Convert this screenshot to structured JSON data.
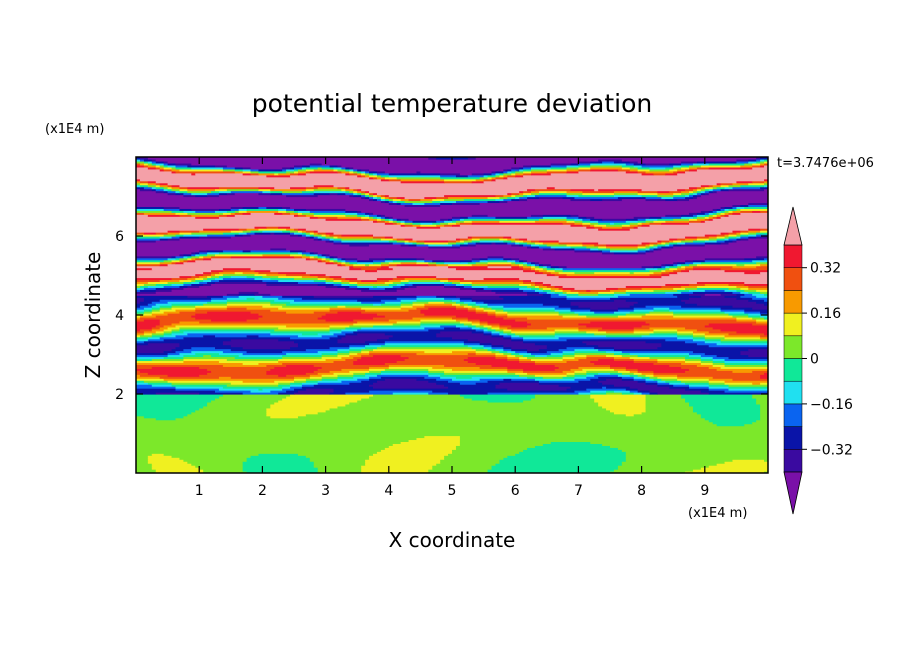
{
  "chart_data": {
    "type": "heatmap",
    "title": "potential temperature deviation",
    "xlabel": "X coordinate",
    "ylabel": "Z coordinate",
    "x_units": "(x1E4 m)",
    "y_units": "(x1E4 m)",
    "time_label": "t=3.7476e+06",
    "xlim": [
      0,
      10
    ],
    "ylim": [
      0,
      8
    ],
    "x_ticks": [
      1,
      2,
      3,
      4,
      5,
      6,
      7,
      8,
      9
    ],
    "y_ticks": [
      2,
      4,
      6
    ],
    "colorbar": {
      "levels": [
        -0.4,
        -0.32,
        -0.24,
        -0.16,
        -0.08,
        0,
        0.08,
        0.16,
        0.24,
        0.32,
        0.4
      ],
      "tick_values": [
        -0.32,
        -0.16,
        0,
        0.16,
        0.32
      ],
      "tick_labels": [
        "−0.32",
        "−0.16",
        "0",
        "0.16",
        "0.32"
      ],
      "colors": [
        "#7a10a8",
        "#3a0aa0",
        "#0a14a8",
        "#0a64f0",
        "#20e0f0",
        "#10e898",
        "#7ce82a",
        "#f0f020",
        "#f89a00",
        "#f05010",
        "#f01830",
        "#f4a0a8"
      ],
      "extend": "both"
    },
    "grid": false
  }
}
